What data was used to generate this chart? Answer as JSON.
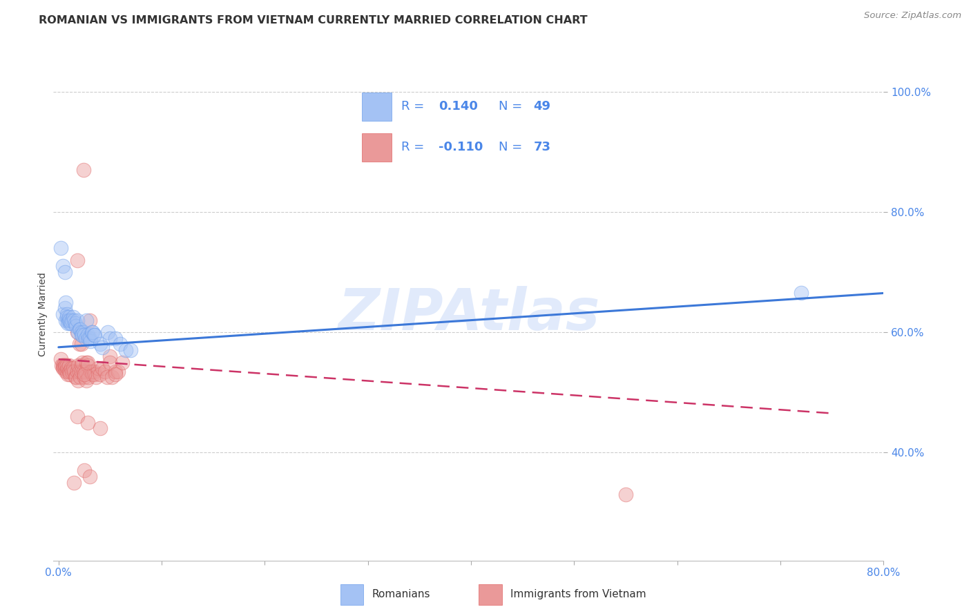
{
  "title": "ROMANIAN VS IMMIGRANTS FROM VIETNAM CURRENTLY MARRIED CORRELATION CHART",
  "source": "Source: ZipAtlas.com",
  "ylabel": "Currently Married",
  "legend_blue_label": "Romanians",
  "legend_pink_label": "Immigrants from Vietnam",
  "watermark": "ZIPAtlas",
  "xlim": [
    -0.005,
    0.8
  ],
  "ylim": [
    0.22,
    1.04
  ],
  "yticks": [
    0.4,
    0.6,
    0.8,
    1.0
  ],
  "ytick_labels": [
    "40.0%",
    "60.0%",
    "80.0%",
    "100.0%"
  ],
  "xtick_positions": [
    0.0,
    0.1,
    0.2,
    0.3,
    0.4,
    0.5,
    0.6,
    0.7,
    0.8
  ],
  "blue_color": "#a4c2f4",
  "blue_edge_color": "#6d9eeb",
  "pink_color": "#ea9999",
  "pink_edge_color": "#e06666",
  "blue_line_color": "#3c78d8",
  "pink_line_color": "#cc3366",
  "legend_text_color": "#4a86e8",
  "blue_scatter_x": [
    0.002,
    0.004,
    0.004,
    0.006,
    0.006,
    0.007,
    0.007,
    0.008,
    0.008,
    0.009,
    0.009,
    0.01,
    0.01,
    0.011,
    0.011,
    0.012,
    0.013,
    0.014,
    0.015,
    0.016,
    0.017,
    0.018,
    0.019,
    0.02,
    0.021,
    0.022,
    0.022,
    0.023,
    0.024,
    0.025,
    0.026,
    0.027,
    0.028,
    0.029,
    0.03,
    0.031,
    0.032,
    0.033,
    0.034,
    0.035,
    0.04,
    0.042,
    0.048,
    0.05,
    0.055,
    0.06,
    0.065,
    0.07,
    0.72
  ],
  "blue_scatter_y": [
    0.74,
    0.71,
    0.63,
    0.64,
    0.7,
    0.65,
    0.62,
    0.63,
    0.625,
    0.62,
    0.615,
    0.62,
    0.625,
    0.615,
    0.62,
    0.615,
    0.62,
    0.625,
    0.62,
    0.615,
    0.61,
    0.62,
    0.6,
    0.605,
    0.605,
    0.6,
    0.595,
    0.595,
    0.6,
    0.595,
    0.59,
    0.62,
    0.595,
    0.59,
    0.59,
    0.585,
    0.6,
    0.6,
    0.595,
    0.595,
    0.58,
    0.575,
    0.6,
    0.59,
    0.59,
    0.58,
    0.57,
    0.57,
    0.665
  ],
  "pink_scatter_x": [
    0.002,
    0.003,
    0.004,
    0.004,
    0.005,
    0.005,
    0.006,
    0.006,
    0.007,
    0.007,
    0.008,
    0.008,
    0.009,
    0.009,
    0.01,
    0.01,
    0.011,
    0.011,
    0.012,
    0.013,
    0.014,
    0.015,
    0.016,
    0.017,
    0.018,
    0.018,
    0.019,
    0.019,
    0.02,
    0.021,
    0.022,
    0.022,
    0.023,
    0.024,
    0.025,
    0.026,
    0.027,
    0.027,
    0.028,
    0.029,
    0.03,
    0.031,
    0.032,
    0.033,
    0.034,
    0.035,
    0.036,
    0.038,
    0.04,
    0.042,
    0.045,
    0.047,
    0.05,
    0.052,
    0.055,
    0.058,
    0.062,
    0.02,
    0.025,
    0.028,
    0.024,
    0.018,
    0.015,
    0.025,
    0.03,
    0.018,
    0.04,
    0.028,
    0.05,
    0.022,
    0.055,
    0.55
  ],
  "pink_scatter_y": [
    0.555,
    0.545,
    0.545,
    0.54,
    0.545,
    0.54,
    0.545,
    0.54,
    0.535,
    0.545,
    0.535,
    0.545,
    0.53,
    0.54,
    0.545,
    0.535,
    0.535,
    0.53,
    0.54,
    0.535,
    0.54,
    0.535,
    0.525,
    0.525,
    0.72,
    0.535,
    0.545,
    0.52,
    0.535,
    0.525,
    0.545,
    0.535,
    0.55,
    0.535,
    0.525,
    0.535,
    0.55,
    0.52,
    0.545,
    0.525,
    0.62,
    0.535,
    0.535,
    0.53,
    0.535,
    0.53,
    0.525,
    0.54,
    0.53,
    0.54,
    0.535,
    0.525,
    0.56,
    0.525,
    0.535,
    0.535,
    0.55,
    0.58,
    0.53,
    0.55,
    0.87,
    0.46,
    0.35,
    0.37,
    0.36,
    0.6,
    0.44,
    0.45,
    0.55,
    0.58,
    0.53,
    0.33
  ],
  "blue_trend_x": [
    0.0,
    0.8
  ],
  "blue_trend_y": [
    0.575,
    0.665
  ],
  "pink_trend_x": [
    0.0,
    0.75
  ],
  "pink_trend_y": [
    0.555,
    0.465
  ],
  "background_color": "#ffffff",
  "grid_color": "#cccccc",
  "title_fontsize": 11.5,
  "tick_color": "#4a86e8",
  "source_fontsize": 9.5
}
